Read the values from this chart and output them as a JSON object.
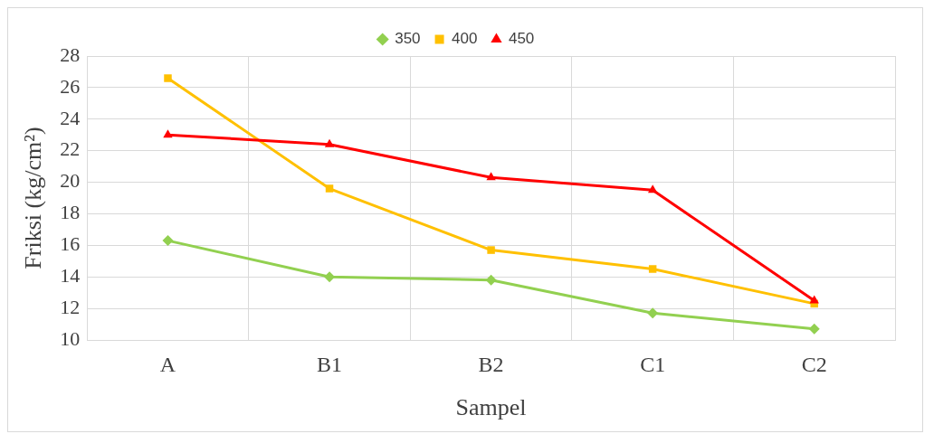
{
  "chart_data": {
    "type": "line",
    "xlabel": "Sampel",
    "ylabel": "Friksi (kg/cm²)",
    "categories": [
      "A",
      "B1",
      "B2",
      "C1",
      "C2"
    ],
    "series": [
      {
        "name": "350",
        "color": "#92d050",
        "marker": "diamond",
        "values": [
          16.3,
          14.0,
          13.8,
          11.7,
          10.7
        ]
      },
      {
        "name": "400",
        "color": "#ffc000",
        "marker": "square",
        "values": [
          26.6,
          19.6,
          15.7,
          14.5,
          12.3
        ]
      },
      {
        "name": "450",
        "color": "#ff0000",
        "marker": "triangle",
        "values": [
          23.0,
          22.4,
          20.3,
          19.5,
          12.5
        ]
      }
    ],
    "ylim": [
      10,
      28
    ],
    "yticks": [
      10,
      12,
      14,
      16,
      18,
      20,
      22,
      24,
      26,
      28
    ],
    "grid": true,
    "legend": "top",
    "line_style": "solid"
  }
}
